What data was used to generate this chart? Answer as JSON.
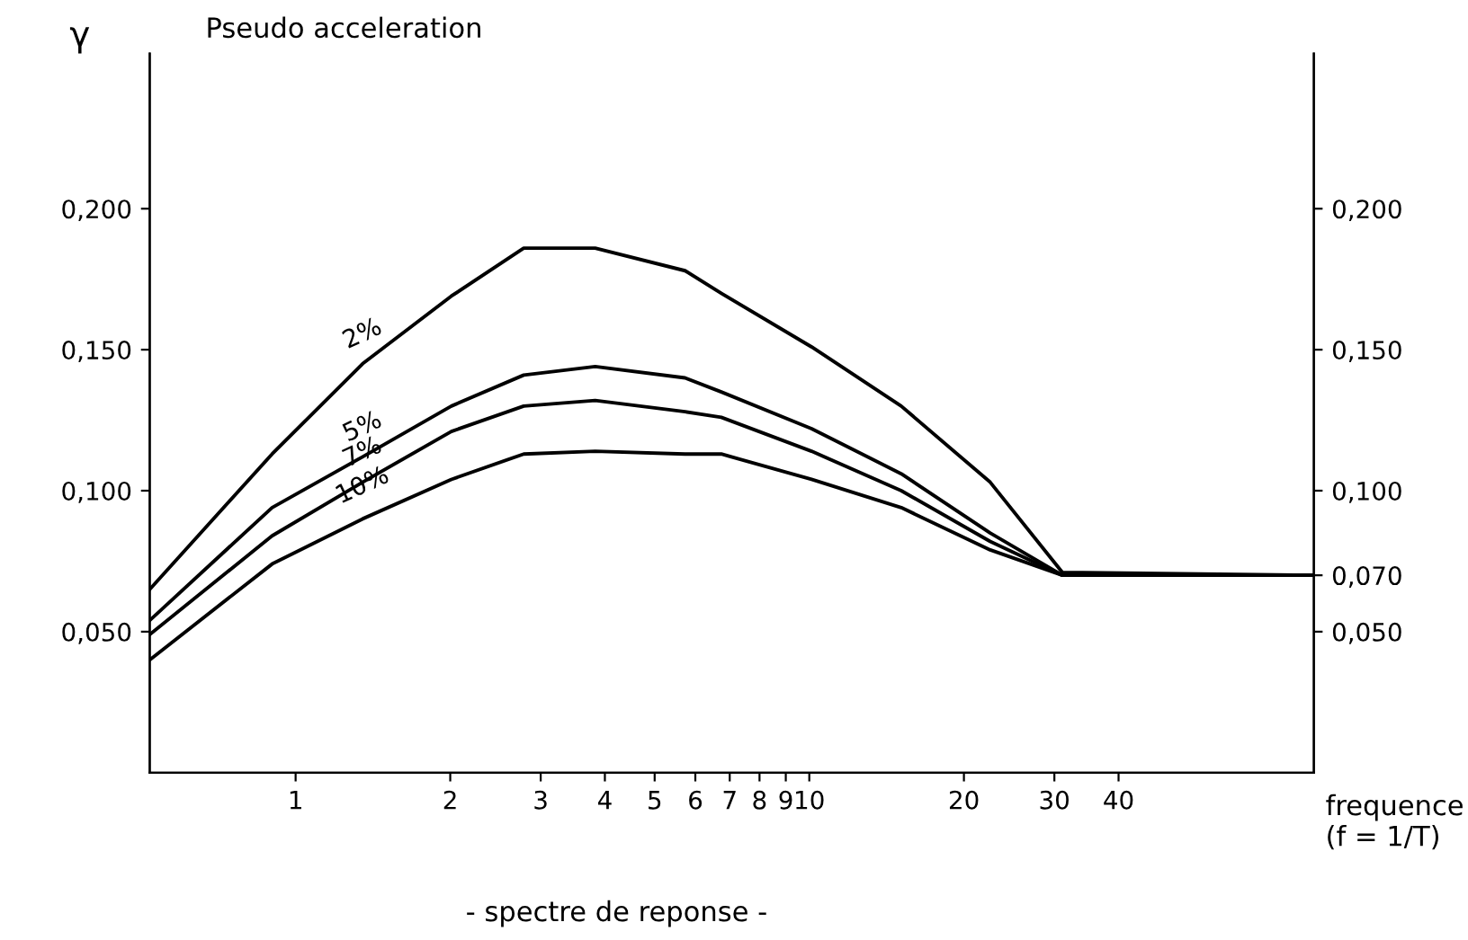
{
  "chart_data": {
    "type": "line",
    "ylabel": "γ",
    "xlabel": "frequence\n(f = 1/T)",
    "annotations": [
      "Pseudo acceleration",
      "- spectre de reponse -"
    ],
    "log": "x",
    "xlim": [
      0.52,
      96
    ],
    "xticks": [
      1,
      2,
      3,
      4,
      5,
      6,
      7,
      8,
      9,
      10,
      20,
      30,
      40
    ],
    "ylim": [
      0,
      0.255
    ],
    "yticks": [
      {
        "value": 0.05,
        "label": "0,050"
      },
      {
        "value": 0.1,
        "label": "0,100"
      },
      {
        "value": 0.15,
        "label": "0,150"
      },
      {
        "value": 0.2,
        "label": "0,200"
      }
    ],
    "y2lim": [
      0,
      0.255
    ],
    "y2ticks": [
      {
        "value": 0.05,
        "label": "0,050"
      },
      {
        "value": 0.07,
        "label": "0,070"
      },
      {
        "value": 0.1,
        "label": "0,100"
      },
      {
        "value": 0.15,
        "label": "0,150"
      },
      {
        "value": 0.2,
        "label": "0,200"
      }
    ],
    "grid": false,
    "legend": false,
    "marker": "none",
    "line_style": "solid",
    "x": [
      0.52,
      0.9,
      1.35,
      2.01,
      2.78,
      3.83,
      5.73,
      6.74,
      10.1,
      15.1,
      22.5,
      31.1,
      96
    ],
    "series": [
      {
        "name": "2%",
        "color": "#000000",
        "values": [
          0.065,
          0.113,
          0.145,
          0.169,
          0.186,
          0.186,
          0.178,
          0.17,
          0.151,
          0.13,
          0.103,
          0.071,
          0.07
        ]
      },
      {
        "name": "5%",
        "color": "#000000",
        "values": [
          0.054,
          0.094,
          0.112,
          0.13,
          0.141,
          0.144,
          0.14,
          0.135,
          0.122,
          0.106,
          0.085,
          0.07,
          0.07
        ]
      },
      {
        "name": "7%",
        "color": "#000000",
        "values": [
          0.049,
          0.084,
          0.103,
          0.121,
          0.13,
          0.132,
          0.128,
          0.126,
          0.114,
          0.1,
          0.082,
          0.07,
          0.07
        ]
      },
      {
        "name": "10%",
        "color": "#000000",
        "values": [
          0.04,
          0.074,
          0.09,
          0.104,
          0.113,
          0.114,
          0.113,
          0.113,
          0.104,
          0.094,
          0.079,
          0.07,
          0.07
        ]
      }
    ]
  }
}
